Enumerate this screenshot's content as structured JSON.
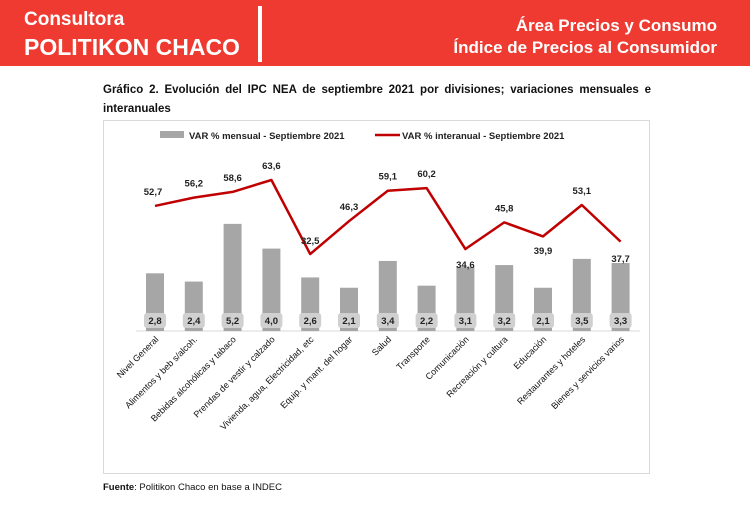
{
  "header": {
    "brand_line1": "Consultora",
    "brand_line2": "POLITIKON CHACO",
    "area": "Área Precios y Consumo",
    "subtitle": "Índice de Precios al Consumidor",
    "color": "#ee3a30"
  },
  "chart_data": {
    "type": "bar+line",
    "title": "Gráfico 2. Evolución del IPC NEA de septiembre 2021 por divisiones; variaciones mensuales e interanuales",
    "categories": [
      "Nivel General",
      "Alimentos y beb s/alcoh.",
      "Bebidas alcohólicas y tabaco",
      "Prendas de vestir y calzado",
      "Vivienda, agua, Electricidad, etc",
      "Equip. y mant. del hogar",
      "Salud",
      "Transporte",
      "Comunicación",
      "Recreación y cultura",
      "Educación",
      "Restaurantes y hoteles",
      "Bienes y servicios varios"
    ],
    "series": [
      {
        "name": "VAR % mensual - Septiembre 2021",
        "type": "bar",
        "color": "#a6a6a6",
        "values": [
          2.8,
          2.4,
          5.2,
          4.0,
          2.6,
          2.1,
          3.4,
          2.2,
          3.1,
          3.2,
          2.1,
          3.5,
          3.3
        ],
        "labels": [
          "2,8",
          "2,4",
          "5,2",
          "4,0",
          "2,6",
          "2,1",
          "3,4",
          "2,2",
          "3,1",
          "3,2",
          "2,1",
          "3,5",
          "3,3"
        ]
      },
      {
        "name": "VAR % interanual - Septiembre 2021",
        "type": "line",
        "color": "#c00000",
        "values": [
          52.7,
          56.2,
          58.6,
          63.6,
          32.5,
          46.3,
          59.1,
          60.2,
          34.6,
          45.8,
          39.9,
          53.1,
          37.7
        ],
        "labels": [
          "52,7",
          "56,2",
          "58,6",
          "63,6",
          "32,5",
          "46,3",
          "59,1",
          "60,2",
          "34,6",
          "45,8",
          "39,9",
          "53,1",
          "37,7"
        ]
      }
    ],
    "legend": "top",
    "grid": false
  },
  "source": {
    "label": "Fuente",
    "text": ": Politikon Chaco en base a INDEC"
  }
}
